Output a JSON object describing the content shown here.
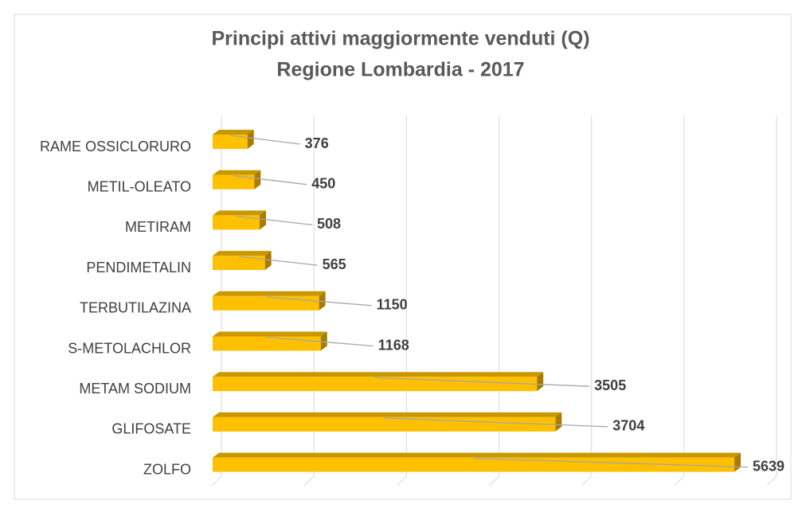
{
  "chart_data": {
    "type": "bar3d-horizontal",
    "title": "Principi attivi maggiormente venduti (Q)",
    "subtitle": "Regione Lombardia - 2017",
    "categories": [
      "RAME OSSICLORURO",
      "METIL-OLEATO",
      "METIRAM",
      "PENDIMETALIN",
      "TERBUTILAZINA",
      "S-METOLACHLOR",
      "METAM SODIUM",
      "GLIFOSATE",
      "ZOLFO"
    ],
    "values": [
      376,
      450,
      508,
      565,
      1150,
      1168,
      3505,
      3704,
      5639
    ],
    "color": "#ffc000",
    "xlim": [
      0,
      6000
    ],
    "xticks": [
      0,
      1000,
      2000,
      3000,
      4000,
      5000,
      6000
    ],
    "grid": true
  }
}
